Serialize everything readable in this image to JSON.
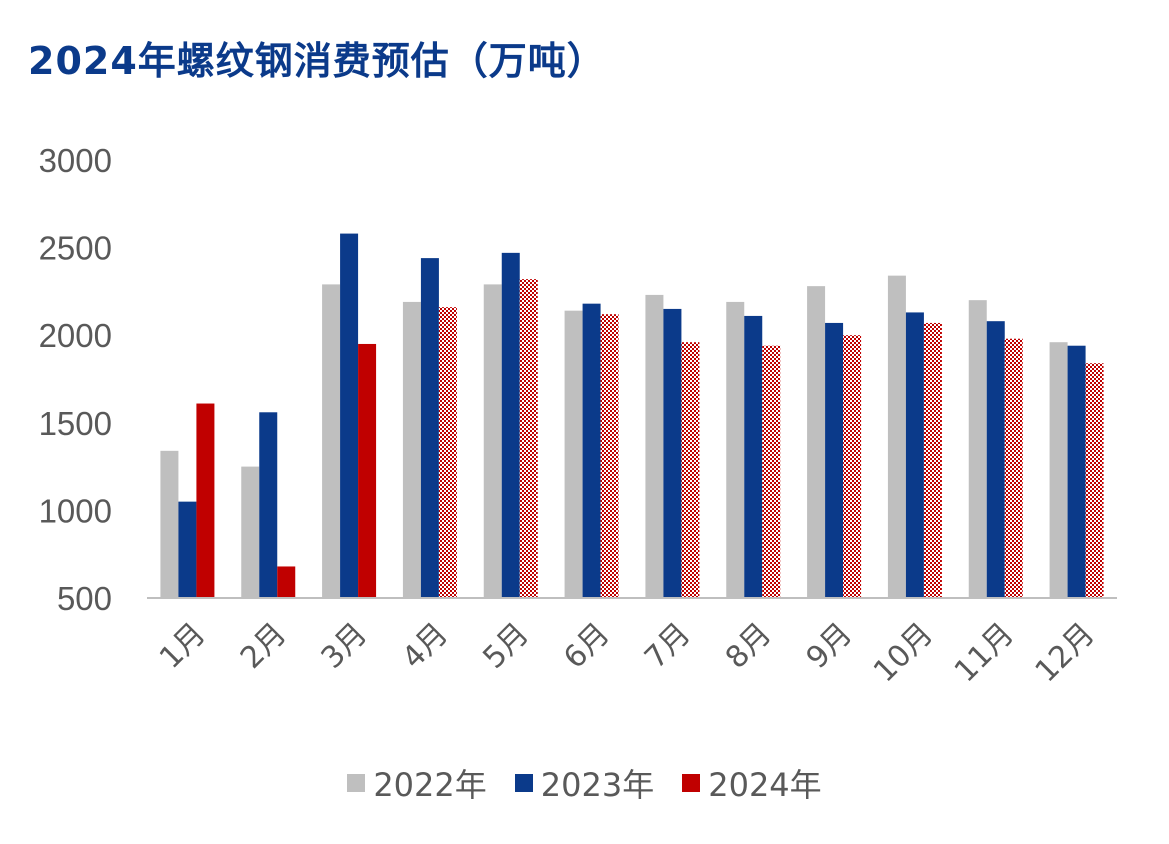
{
  "chart_data": {
    "type": "bar",
    "title": "2024年螺纹钢消费预估（万吨）",
    "categories": [
      "1月",
      "2月",
      "3月",
      "4月",
      "5月",
      "6月",
      "7月",
      "8月",
      "9月",
      "10月",
      "11月",
      "12月"
    ],
    "ylim": [
      500,
      3000
    ],
    "yticks": [
      500,
      1000,
      1500,
      2000,
      2500,
      3000
    ],
    "grid": false,
    "legend_position": "bottom",
    "series": [
      {
        "name": "2022年",
        "color": "#bfbfbf",
        "values": [
          1340,
          1250,
          2290,
          2190,
          2290,
          2140,
          2230,
          2190,
          2280,
          2340,
          2200,
          1960
        ]
      },
      {
        "name": "2023年",
        "color": "#0b3a8a",
        "values": [
          1050,
          1560,
          2580,
          2440,
          2470,
          2180,
          2150,
          2110,
          2070,
          2130,
          2080,
          1940
        ]
      },
      {
        "name": "2024年",
        "color": "#c00000",
        "values": [
          1610,
          680,
          1950,
          2160,
          2320,
          2120,
          1960,
          1940,
          2000,
          2070,
          1980,
          1840
        ],
        "estimated_from_index": 3
      }
    ]
  }
}
